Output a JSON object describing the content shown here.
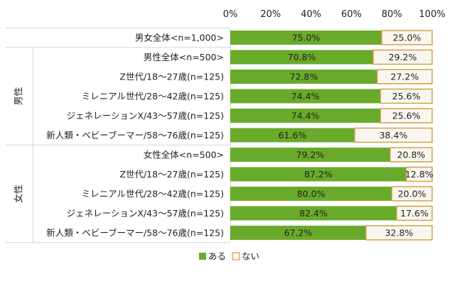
{
  "chart_data": {
    "type": "bar",
    "orientation": "horizontal",
    "stacked": "percent",
    "x_ticks": [
      "0%",
      "20%",
      "40%",
      "60%",
      "80%",
      "100%"
    ],
    "xlim": [
      0,
      100
    ],
    "groups": [
      {
        "label": "",
        "rows": [
          0
        ]
      },
      {
        "label": "男性",
        "rows": [
          1,
          2,
          3,
          4,
          5
        ]
      },
      {
        "label": "女性",
        "rows": [
          6,
          7,
          8,
          9,
          10
        ]
      }
    ],
    "categories": [
      "男女全体<n=1,000>",
      "男性全体<n=500>",
      "Z世代/18～27歳(n=125)",
      "ミレニアル世代/28～42歳(n=125)",
      "ジェネレーションX/43～57歳(n=125)",
      "新人類・ベビーブーマー/58～76歳(n=125)",
      "女性全体<n=500>",
      "Z世代/18～27歳(n=125)",
      "ミレニアル世代/28～42歳(n=125)",
      "ジェネレーションX/43～57歳(n=125)",
      "新人類・ベビーブーマー/58～76歳(n=125)"
    ],
    "series": [
      {
        "name": "ある",
        "color": "#6aaa2a",
        "values": [
          75.0,
          70.8,
          72.8,
          74.4,
          74.4,
          61.6,
          79.2,
          87.2,
          80.0,
          82.4,
          67.2
        ],
        "labels": [
          "75.0%",
          "70.8%",
          "72.8%",
          "74.4%",
          "74.4%",
          "61.6%",
          "79.2%",
          "87.2%",
          "80.0%",
          "82.4%",
          "67.2%"
        ]
      },
      {
        "name": "ない",
        "color": "#f8f6ee",
        "border": "#d4a04a",
        "values": [
          25.0,
          29.2,
          27.2,
          25.6,
          25.6,
          38.4,
          20.8,
          12.8,
          20.0,
          17.6,
          32.8
        ],
        "labels": [
          "25.0%",
          "29.2%",
          "27.2%",
          "25.6%",
          "25.6%",
          "38.4%",
          "20.8%",
          "12.8%",
          "20.0%",
          "17.6%",
          "32.8%"
        ]
      }
    ],
    "legend_position": "bottom",
    "grid": false
  }
}
